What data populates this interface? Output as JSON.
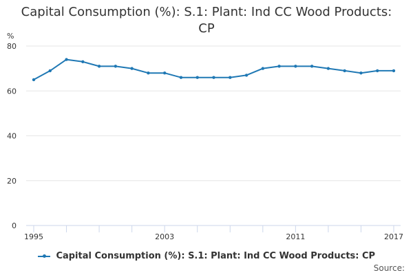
{
  "chart_data": {
    "type": "line",
    "title_line1": "Capital Consumption (%): S.1: Plant: Ind CC Wood Products:",
    "title_line2": "CP",
    "ylabel": "%",
    "xlabel": "",
    "ylim": [
      0,
      80
    ],
    "yticks": [
      "0",
      "20",
      "40",
      "60",
      "80"
    ],
    "x": [
      1995,
      1996,
      1997,
      1998,
      1999,
      2000,
      2001,
      2002,
      2003,
      2004,
      2005,
      2006,
      2007,
      2008,
      2009,
      2010,
      2011,
      2012,
      2013,
      2014,
      2015,
      2016,
      2017
    ],
    "xtick_labels": [
      "1995",
      "2003",
      "2011",
      "2017"
    ],
    "series": [
      {
        "name": "Capital Consumption (%): S.1: Plant: Ind CC Wood Products: CP",
        "values": [
          65,
          69,
          74,
          73,
          71,
          71,
          70,
          68,
          68,
          66,
          66,
          66,
          66,
          67,
          70,
          71,
          71,
          71,
          70,
          69,
          68,
          69,
          69
        ]
      }
    ],
    "grid": true,
    "legend": "bottom-center",
    "source": "Source:"
  },
  "colors": {
    "series": "#1f78b4",
    "grid": "#e6e6e6",
    "axis": "#ccd6eb",
    "text": "#333333"
  }
}
